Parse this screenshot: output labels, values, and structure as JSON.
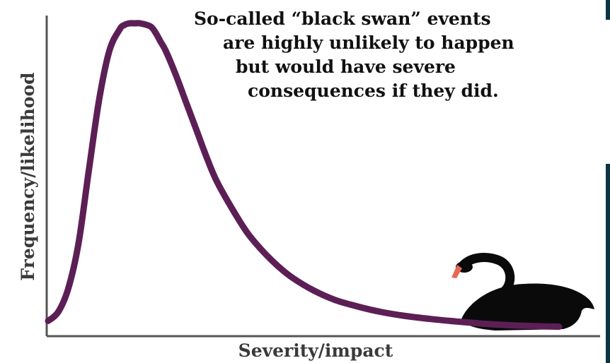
{
  "colors": {
    "curve": "#5c1f55",
    "axis": "#555555",
    "swan": "#0a0a0a",
    "beak": "#e26a55",
    "text": "#111111",
    "edge": "#0d3540"
  },
  "icons": {
    "swan": "black-swan-icon"
  },
  "chart_data": {
    "type": "line",
    "title": "",
    "xlabel": "Severity/impact",
    "ylabel": "Frequency/likelihood",
    "annotation": [
      "So-called “black swan” events",
      "are highly unlikely to happen",
      "but would have severe",
      "consequences if they did."
    ],
    "xlim": [
      0,
      100
    ],
    "ylim": [
      0,
      100
    ],
    "grid": false,
    "legend": "none",
    "series": [
      {
        "x": [
          0,
          2,
          4,
          6,
          8,
          10,
          12,
          14,
          15,
          16,
          17,
          18,
          20,
          21,
          22,
          23,
          25,
          27,
          29,
          31,
          33,
          36,
          39,
          42,
          45,
          48,
          52,
          56,
          60,
          65,
          70,
          75,
          80,
          85,
          90,
          95,
          100
        ],
        "y": [
          2,
          5,
          13,
          28,
          52,
          75,
          91,
          98,
          99.5,
          100,
          100,
          100,
          99,
          97,
          94,
          91,
          83,
          74,
          65,
          56,
          48,
          39,
          31,
          25,
          20,
          16,
          12,
          9,
          7,
          5,
          3.6,
          2.6,
          1.8,
          1.1,
          0.6,
          0.3,
          0.1
        ]
      }
    ]
  }
}
